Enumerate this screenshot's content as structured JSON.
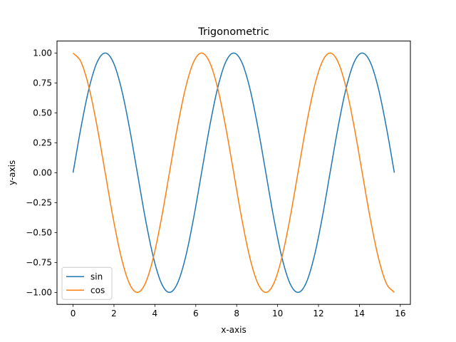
{
  "chart_data": {
    "type": "line",
    "title": "Trigonometric",
    "xlabel": "x-axis",
    "ylabel": "y-axis",
    "xlim": [
      -0.785,
      16.493
    ],
    "ylim": [
      -1.1,
      1.1
    ],
    "x_ticks": [
      0,
      2,
      4,
      6,
      8,
      10,
      12,
      14,
      16
    ],
    "x_tick_labels": [
      "0",
      "2",
      "4",
      "6",
      "8",
      "10",
      "12",
      "14",
      "16"
    ],
    "y_ticks": [
      -1.0,
      -0.75,
      -0.5,
      -0.25,
      0.0,
      0.25,
      0.5,
      0.75,
      1.0
    ],
    "y_tick_labels": [
      "−1.00",
      "−0.75",
      "−0.50",
      "−0.25",
      "0.00",
      "0.25",
      "0.50",
      "0.75",
      "1.00"
    ],
    "grid": false,
    "legend_position": "lower-left",
    "x": [
      0,
      0.393,
      0.785,
      1.178,
      1.571,
      1.963,
      2.356,
      2.749,
      3.142,
      3.534,
      3.927,
      4.32,
      4.712,
      5.105,
      5.498,
      5.89,
      6.283,
      6.676,
      7.069,
      7.461,
      7.854,
      8.247,
      8.639,
      9.032,
      9.425,
      9.817,
      10.21,
      10.603,
      10.996,
      11.388,
      11.781,
      12.174,
      12.566,
      12.959,
      13.352,
      13.744,
      14.137,
      14.53,
      14.923,
      15.315,
      15.708
    ],
    "series": [
      {
        "name": "sin",
        "color": "#1f77b4",
        "values": [
          0.0,
          0.383,
          0.707,
          0.924,
          1.0,
          0.924,
          0.707,
          0.383,
          0.0,
          -0.383,
          -0.707,
          -0.924,
          -1.0,
          -0.924,
          -0.707,
          -0.383,
          0.0,
          0.383,
          0.707,
          0.924,
          1.0,
          0.924,
          0.707,
          0.383,
          0.0,
          -0.383,
          -0.707,
          -0.924,
          -1.0,
          -0.924,
          -0.707,
          -0.383,
          0.0,
          0.383,
          0.707,
          0.924,
          1.0,
          0.924,
          0.707,
          0.383,
          0.0
        ]
      },
      {
        "name": "cos",
        "color": "#ff7f0e",
        "values": [
          1.0,
          0.924,
          0.707,
          0.383,
          0.0,
          -0.383,
          -0.707,
          -0.924,
          -1.0,
          -0.924,
          -0.707,
          -0.383,
          0.0,
          0.383,
          0.707,
          0.924,
          1.0,
          0.924,
          0.707,
          0.383,
          0.0,
          -0.383,
          -0.707,
          -0.924,
          -1.0,
          -0.924,
          -0.707,
          -0.383,
          0.0,
          0.383,
          0.707,
          0.924,
          1.0,
          0.924,
          0.707,
          0.383,
          0.0,
          -0.383,
          -0.707,
          -0.924,
          -1.0
        ]
      }
    ]
  }
}
